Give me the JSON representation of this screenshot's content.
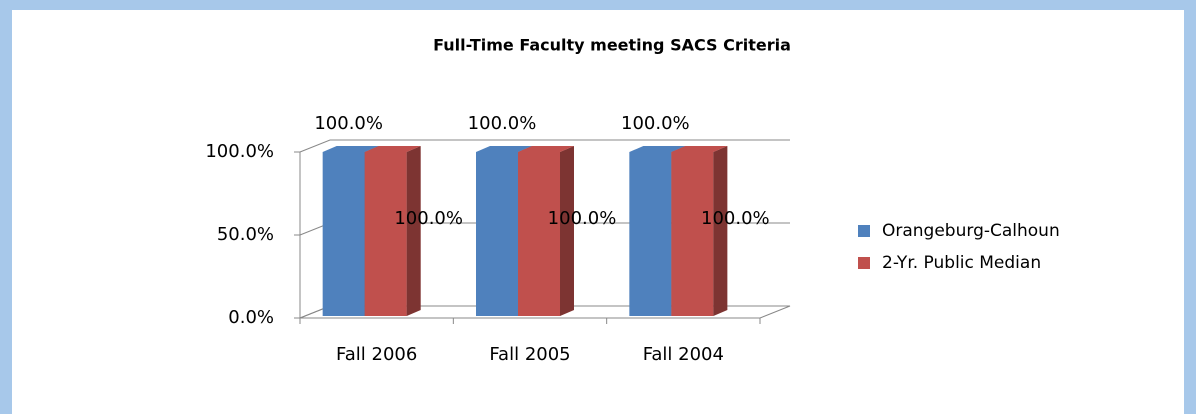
{
  "chart_data": {
    "type": "bar3d",
    "title": "Full-Time Faculty meeting SACS Criteria",
    "categories": [
      "Fall 2006",
      "Fall 2005",
      "Fall 2004"
    ],
    "series": [
      {
        "name": "Orangeburg-Calhoun",
        "color": "#4f81bd",
        "values": [
          100,
          100,
          100
        ],
        "value_labels": [
          "100.0%",
          "100.0%",
          "100.0%"
        ]
      },
      {
        "name": "2-Yr. Public Median",
        "color": "#c0504d",
        "values": [
          100,
          100,
          100
        ],
        "value_labels": [
          "100.0%",
          "100.0%",
          "100.0%"
        ]
      }
    ],
    "ylim": [
      0,
      100
    ],
    "yticks": [
      {
        "value": 0,
        "label": "0.0%"
      },
      {
        "value": 50,
        "label": "50.0%"
      },
      {
        "value": 100,
        "label": "100.0%"
      }
    ],
    "legend": "right"
  }
}
